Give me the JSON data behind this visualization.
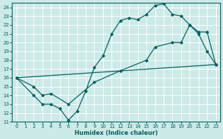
{
  "xlabel": "Humidex (Indice chaleur)",
  "bg_color": "#cceae7",
  "grid_color": "#ffffff",
  "line_color": "#006060",
  "xlim": [
    -0.5,
    23.5
  ],
  "ylim": [
    11,
    24.5
  ],
  "xticks": [
    0,
    1,
    2,
    3,
    4,
    5,
    6,
    7,
    8,
    9,
    10,
    11,
    12,
    13,
    14,
    15,
    16,
    17,
    18,
    19,
    20,
    21,
    22,
    23
  ],
  "yticks": [
    11,
    12,
    13,
    14,
    15,
    16,
    17,
    18,
    19,
    20,
    21,
    22,
    23,
    24
  ],
  "curve1_x": [
    0,
    2,
    3,
    4,
    5,
    6,
    7,
    8,
    9,
    10,
    11,
    12,
    13,
    14,
    15,
    16,
    17,
    18,
    19,
    20,
    21,
    22,
    23
  ],
  "curve1_y": [
    16.0,
    14.0,
    13.0,
    13.0,
    12.5,
    11.2,
    12.2,
    14.5,
    17.2,
    18.5,
    21.0,
    22.5,
    22.8,
    22.6,
    23.2,
    24.2,
    24.4,
    23.2,
    23.0,
    22.0,
    21.0,
    19.0,
    17.5
  ],
  "curve2_x": [
    0,
    2,
    3,
    4,
    6,
    9,
    12,
    15,
    16,
    18,
    19,
    20,
    21,
    22,
    23
  ],
  "curve2_y": [
    16.0,
    15.0,
    14.0,
    14.2,
    13.0,
    15.5,
    16.8,
    18.0,
    19.5,
    20.0,
    20.0,
    22.0,
    21.2,
    21.2,
    17.5
  ],
  "curve3_x": [
    0,
    23
  ],
  "curve3_y": [
    16.0,
    17.5
  ]
}
